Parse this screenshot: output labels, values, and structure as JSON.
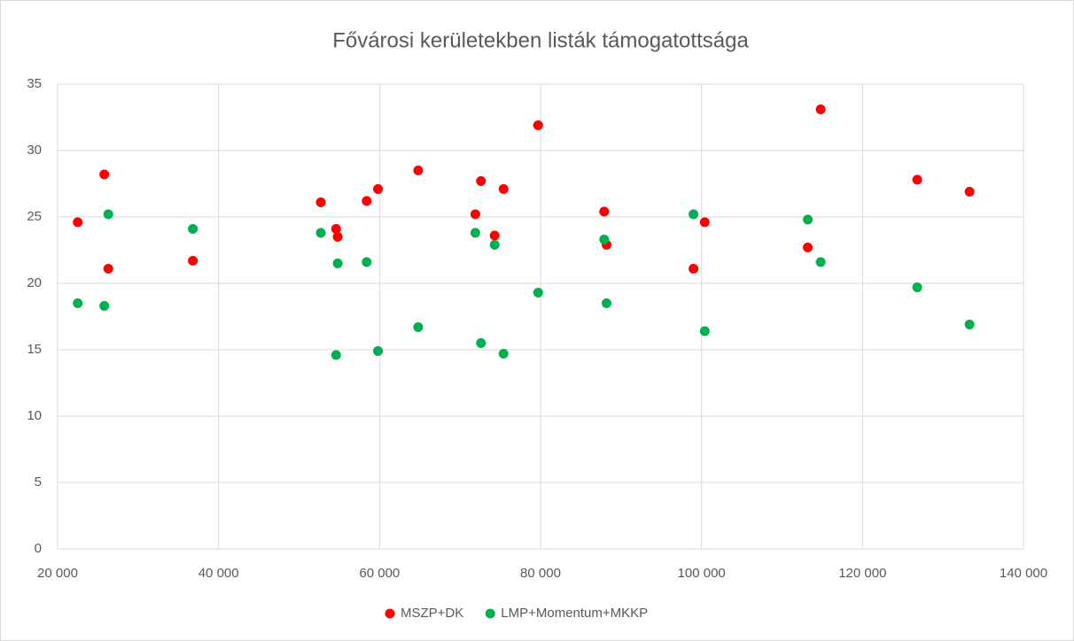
{
  "chart_data": {
    "type": "scatter",
    "title": "Fővárosi kerületekben listák támogatottsága",
    "xlim": [
      20000,
      140000
    ],
    "xticks": [
      {
        "value": 20000,
        "label": "20 000"
      },
      {
        "value": 40000,
        "label": "40 000"
      },
      {
        "value": 60000,
        "label": "60 000"
      },
      {
        "value": 80000,
        "label": "80 000"
      },
      {
        "value": 100000,
        "label": "100 000"
      },
      {
        "value": 120000,
        "label": "120 000"
      },
      {
        "value": 140000,
        "label": "140 000"
      }
    ],
    "ylim": [
      0,
      35
    ],
    "yticks": [
      0,
      5,
      10,
      15,
      20,
      25,
      30,
      35
    ],
    "grid": true,
    "legend": "bottom",
    "series": [
      {
        "name": "MSZP+DK",
        "color": "#ff0000",
        "x": [
          22500,
          25800,
          26300,
          36800,
          52700,
          54600,
          54800,
          58400,
          59800,
          64800,
          71900,
          72600,
          74300,
          75400,
          79700,
          87900,
          88200,
          99000,
          100400,
          113200,
          114800,
          126800,
          133300
        ],
        "values": [
          24.6,
          28.2,
          21.1,
          21.7,
          26.1,
          24.1,
          23.5,
          26.2,
          27.1,
          28.5,
          25.2,
          27.7,
          23.6,
          27.1,
          31.9,
          25.4,
          22.9,
          21.1,
          24.6,
          22.7,
          33.1,
          27.8,
          26.9
        ]
      },
      {
        "name": "LMP+Momentum+MKKP",
        "color": "#00b050",
        "x": [
          22500,
          25800,
          26300,
          36800,
          52700,
          54600,
          54800,
          58400,
          59800,
          64800,
          71900,
          72600,
          74300,
          75400,
          79700,
          87900,
          88200,
          99000,
          100400,
          113200,
          114800,
          126800,
          133300
        ],
        "values": [
          18.5,
          18.3,
          25.2,
          24.1,
          23.8,
          14.6,
          21.5,
          21.6,
          14.9,
          16.7,
          23.8,
          15.5,
          22.9,
          14.7,
          19.3,
          23.3,
          18.5,
          25.2,
          16.4,
          24.8,
          21.6,
          19.7,
          16.9
        ]
      }
    ]
  }
}
